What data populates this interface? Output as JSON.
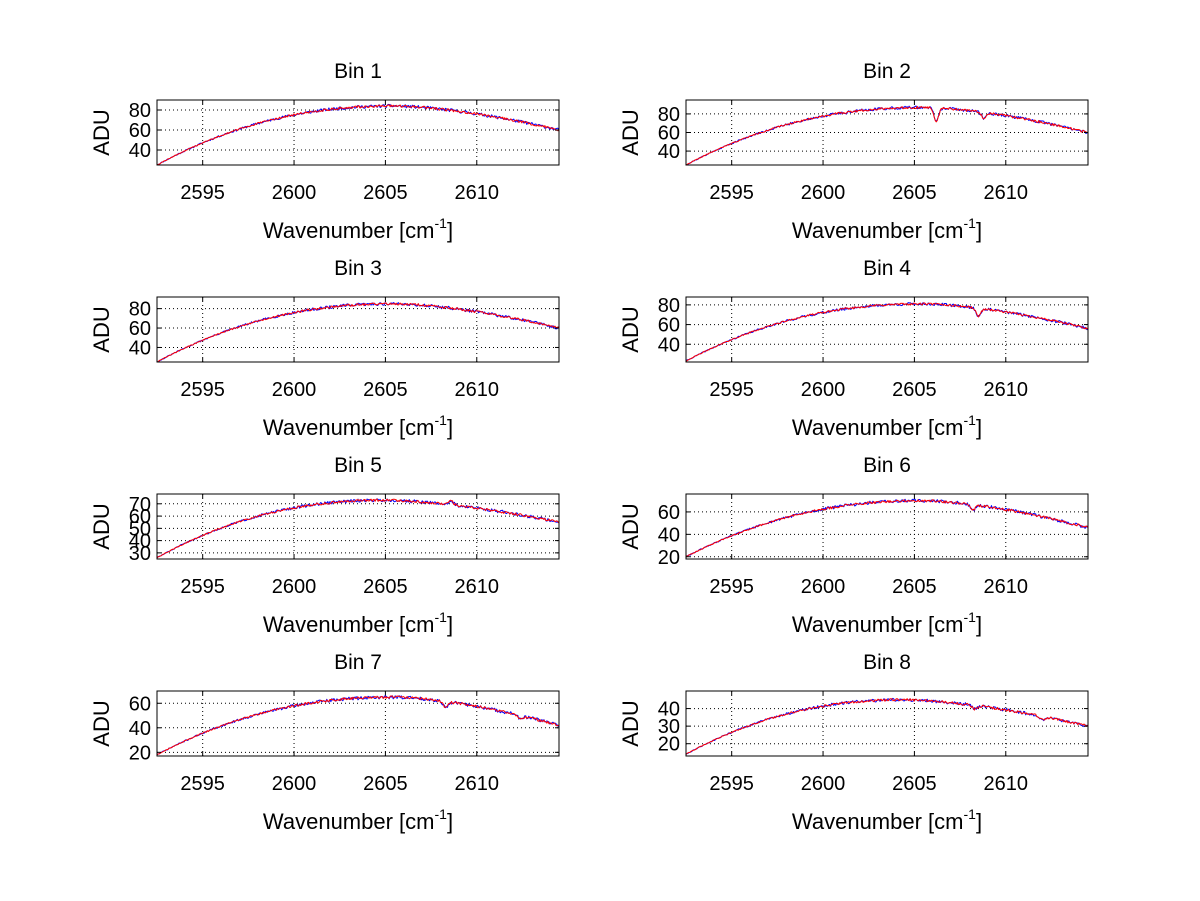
{
  "figure": {
    "background": "#ffffff"
  },
  "chart_data": [
    {
      "type": "line",
      "title": "Bin 1",
      "xlabel": "Wavenumber",
      "xunit_base": "cm",
      "xunit_exp": "-1",
      "ylabel": "ADU",
      "xlim": [
        2592.5,
        2614.5
      ],
      "ylim": [
        25,
        90
      ],
      "xticks": [
        2595,
        2600,
        2605,
        2610
      ],
      "yticks": [
        40,
        60,
        80
      ],
      "series": [
        {
          "name": "blue",
          "color": "#0000ff",
          "profile": {
            "start": 25,
            "peak": 84,
            "peak_x": 2605.5,
            "end": 60,
            "noise": 1.6,
            "dips": []
          },
          "seed": 11
        },
        {
          "name": "red",
          "color": "#ff0000",
          "profile": {
            "start": 25,
            "peak": 84,
            "peak_x": 2605.5,
            "end": 60,
            "noise": 1.2,
            "dips": []
          },
          "seed": 12
        }
      ]
    },
    {
      "type": "line",
      "title": "Bin 2",
      "xlabel": "Wavenumber",
      "xunit_base": "cm",
      "xunit_exp": "-1",
      "ylabel": "ADU",
      "xlim": [
        2592.5,
        2614.5
      ],
      "ylim": [
        25,
        95
      ],
      "xticks": [
        2595,
        2600,
        2605,
        2610
      ],
      "yticks": [
        40,
        60,
        80
      ],
      "series": [
        {
          "name": "blue",
          "color": "#0000ff",
          "profile": {
            "start": 25,
            "peak": 87,
            "peak_x": 2605.5,
            "end": 60,
            "noise": 1.6,
            "dips": [
              [
                2606.2,
                14
              ],
              [
                2608.8,
                6
              ]
            ]
          },
          "seed": 21
        },
        {
          "name": "red",
          "color": "#ff0000",
          "profile": {
            "start": 25,
            "peak": 87,
            "peak_x": 2605.5,
            "end": 60,
            "noise": 1.2,
            "dips": [
              [
                2606.2,
                14
              ],
              [
                2608.8,
                6
              ]
            ]
          },
          "seed": 22
        }
      ]
    },
    {
      "type": "line",
      "title": "Bin 3",
      "xlabel": "Wavenumber",
      "xunit_base": "cm",
      "xunit_exp": "-1",
      "ylabel": "ADU",
      "xlim": [
        2592.5,
        2614.5
      ],
      "ylim": [
        25,
        92
      ],
      "xticks": [
        2595,
        2600,
        2605,
        2610
      ],
      "yticks": [
        40,
        60,
        80
      ],
      "series": [
        {
          "name": "blue",
          "color": "#0000ff",
          "profile": {
            "start": 25,
            "peak": 85,
            "peak_x": 2605.5,
            "end": 60,
            "noise": 1.6,
            "dips": []
          },
          "seed": 31
        },
        {
          "name": "red",
          "color": "#ff0000",
          "profile": {
            "start": 25,
            "peak": 85,
            "peak_x": 2605.5,
            "end": 60,
            "noise": 1.2,
            "dips": []
          },
          "seed": 32
        }
      ]
    },
    {
      "type": "line",
      "title": "Bin 4",
      "xlabel": "Wavenumber",
      "xunit_base": "cm",
      "xunit_exp": "-1",
      "ylabel": "ADU",
      "xlim": [
        2592.5,
        2614.5
      ],
      "ylim": [
        22,
        88
      ],
      "xticks": [
        2595,
        2600,
        2605,
        2610
      ],
      "yticks": [
        40,
        60,
        80
      ],
      "series": [
        {
          "name": "blue",
          "color": "#0000ff",
          "profile": {
            "start": 23,
            "peak": 81,
            "peak_x": 2605.5,
            "end": 56,
            "noise": 1.5,
            "dips": [
              [
                2608.5,
                8
              ]
            ]
          },
          "seed": 41
        },
        {
          "name": "red",
          "color": "#ff0000",
          "profile": {
            "start": 23,
            "peak": 81,
            "peak_x": 2605.5,
            "end": 56,
            "noise": 1.1,
            "dips": [
              [
                2608.5,
                8
              ]
            ]
          },
          "seed": 42
        }
      ]
    },
    {
      "type": "line",
      "title": "Bin 5",
      "xlabel": "Wavenumber",
      "xunit_base": "cm",
      "xunit_exp": "-1",
      "ylabel": "ADU",
      "xlim": [
        2592.5,
        2614.5
      ],
      "ylim": [
        25,
        78
      ],
      "xticks": [
        2595,
        2600,
        2605,
        2610
      ],
      "yticks": [
        30,
        40,
        50,
        60,
        70
      ],
      "ytick_labels": [
        "30",
        "40",
        "50",
        "60",
        "70"
      ],
      "series": [
        {
          "name": "blue",
          "color": "#0000ff",
          "profile": {
            "start": 26,
            "peak": 73,
            "peak_x": 2605.0,
            "end": 55,
            "noise": 1.3,
            "dips": [
              [
                2608.6,
                -3
              ]
            ]
          },
          "seed": 51
        },
        {
          "name": "red",
          "color": "#ff0000",
          "profile": {
            "start": 26,
            "peak": 73,
            "peak_x": 2605.0,
            "end": 55,
            "noise": 1.0,
            "dips": [
              [
                2608.6,
                -3
              ]
            ]
          },
          "seed": 52
        }
      ]
    },
    {
      "type": "line",
      "title": "Bin 6",
      "xlabel": "Wavenumber",
      "xunit_base": "cm",
      "xunit_exp": "-1",
      "ylabel": "ADU",
      "xlim": [
        2592.5,
        2614.5
      ],
      "ylim": [
        18,
        76
      ],
      "xticks": [
        2595,
        2600,
        2605,
        2610
      ],
      "yticks": [
        20,
        40,
        60
      ],
      "series": [
        {
          "name": "blue",
          "color": "#0000ff",
          "profile": {
            "start": 20,
            "peak": 70,
            "peak_x": 2605.5,
            "end": 46,
            "noise": 1.5,
            "dips": [
              [
                2608.2,
                5
              ]
            ]
          },
          "seed": 61
        },
        {
          "name": "red",
          "color": "#ff0000",
          "profile": {
            "start": 20,
            "peak": 70,
            "peak_x": 2605.5,
            "end": 46,
            "noise": 1.1,
            "dips": [
              [
                2608.2,
                5
              ]
            ]
          },
          "seed": 62
        }
      ]
    },
    {
      "type": "line",
      "title": "Bin 7",
      "xlabel": "Wavenumber",
      "xunit_base": "cm",
      "xunit_exp": "-1",
      "ylabel": "ADU",
      "xlim": [
        2592.5,
        2614.5
      ],
      "ylim": [
        17,
        70
      ],
      "xticks": [
        2595,
        2600,
        2605,
        2610
      ],
      "yticks": [
        20,
        40,
        60
      ],
      "series": [
        {
          "name": "blue",
          "color": "#0000ff",
          "profile": {
            "start": 18,
            "peak": 65,
            "peak_x": 2605.5,
            "end": 42,
            "noise": 1.4,
            "dips": [
              [
                2608.3,
                5
              ],
              [
                2612.4,
                3
              ]
            ]
          },
          "seed": 71
        },
        {
          "name": "red",
          "color": "#ff0000",
          "profile": {
            "start": 18,
            "peak": 65,
            "peak_x": 2605.5,
            "end": 42,
            "noise": 1.0,
            "dips": [
              [
                2608.3,
                5
              ],
              [
                2612.4,
                3
              ]
            ]
          },
          "seed": 72
        }
      ]
    },
    {
      "type": "line",
      "title": "Bin 8",
      "xlabel": "Wavenumber",
      "xunit_base": "cm",
      "xunit_exp": "-1",
      "ylabel": "ADU",
      "xlim": [
        2592.5,
        2614.5
      ],
      "ylim": [
        13,
        50
      ],
      "xticks": [
        2595,
        2600,
        2605,
        2610
      ],
      "yticks": [
        20,
        30,
        40
      ],
      "series": [
        {
          "name": "blue",
          "color": "#0000ff",
          "profile": {
            "start": 14,
            "peak": 45,
            "peak_x": 2604.5,
            "end": 30,
            "noise": 0.9,
            "dips": [
              [
                2608.3,
                2
              ],
              [
                2612.0,
                2
              ]
            ]
          },
          "seed": 81
        },
        {
          "name": "red",
          "color": "#ff0000",
          "profile": {
            "start": 14,
            "peak": 45,
            "peak_x": 2604.5,
            "end": 30,
            "noise": 0.7,
            "dips": [
              [
                2608.3,
                2
              ],
              [
                2612.0,
                2
              ]
            ]
          },
          "seed": 82
        }
      ]
    }
  ]
}
